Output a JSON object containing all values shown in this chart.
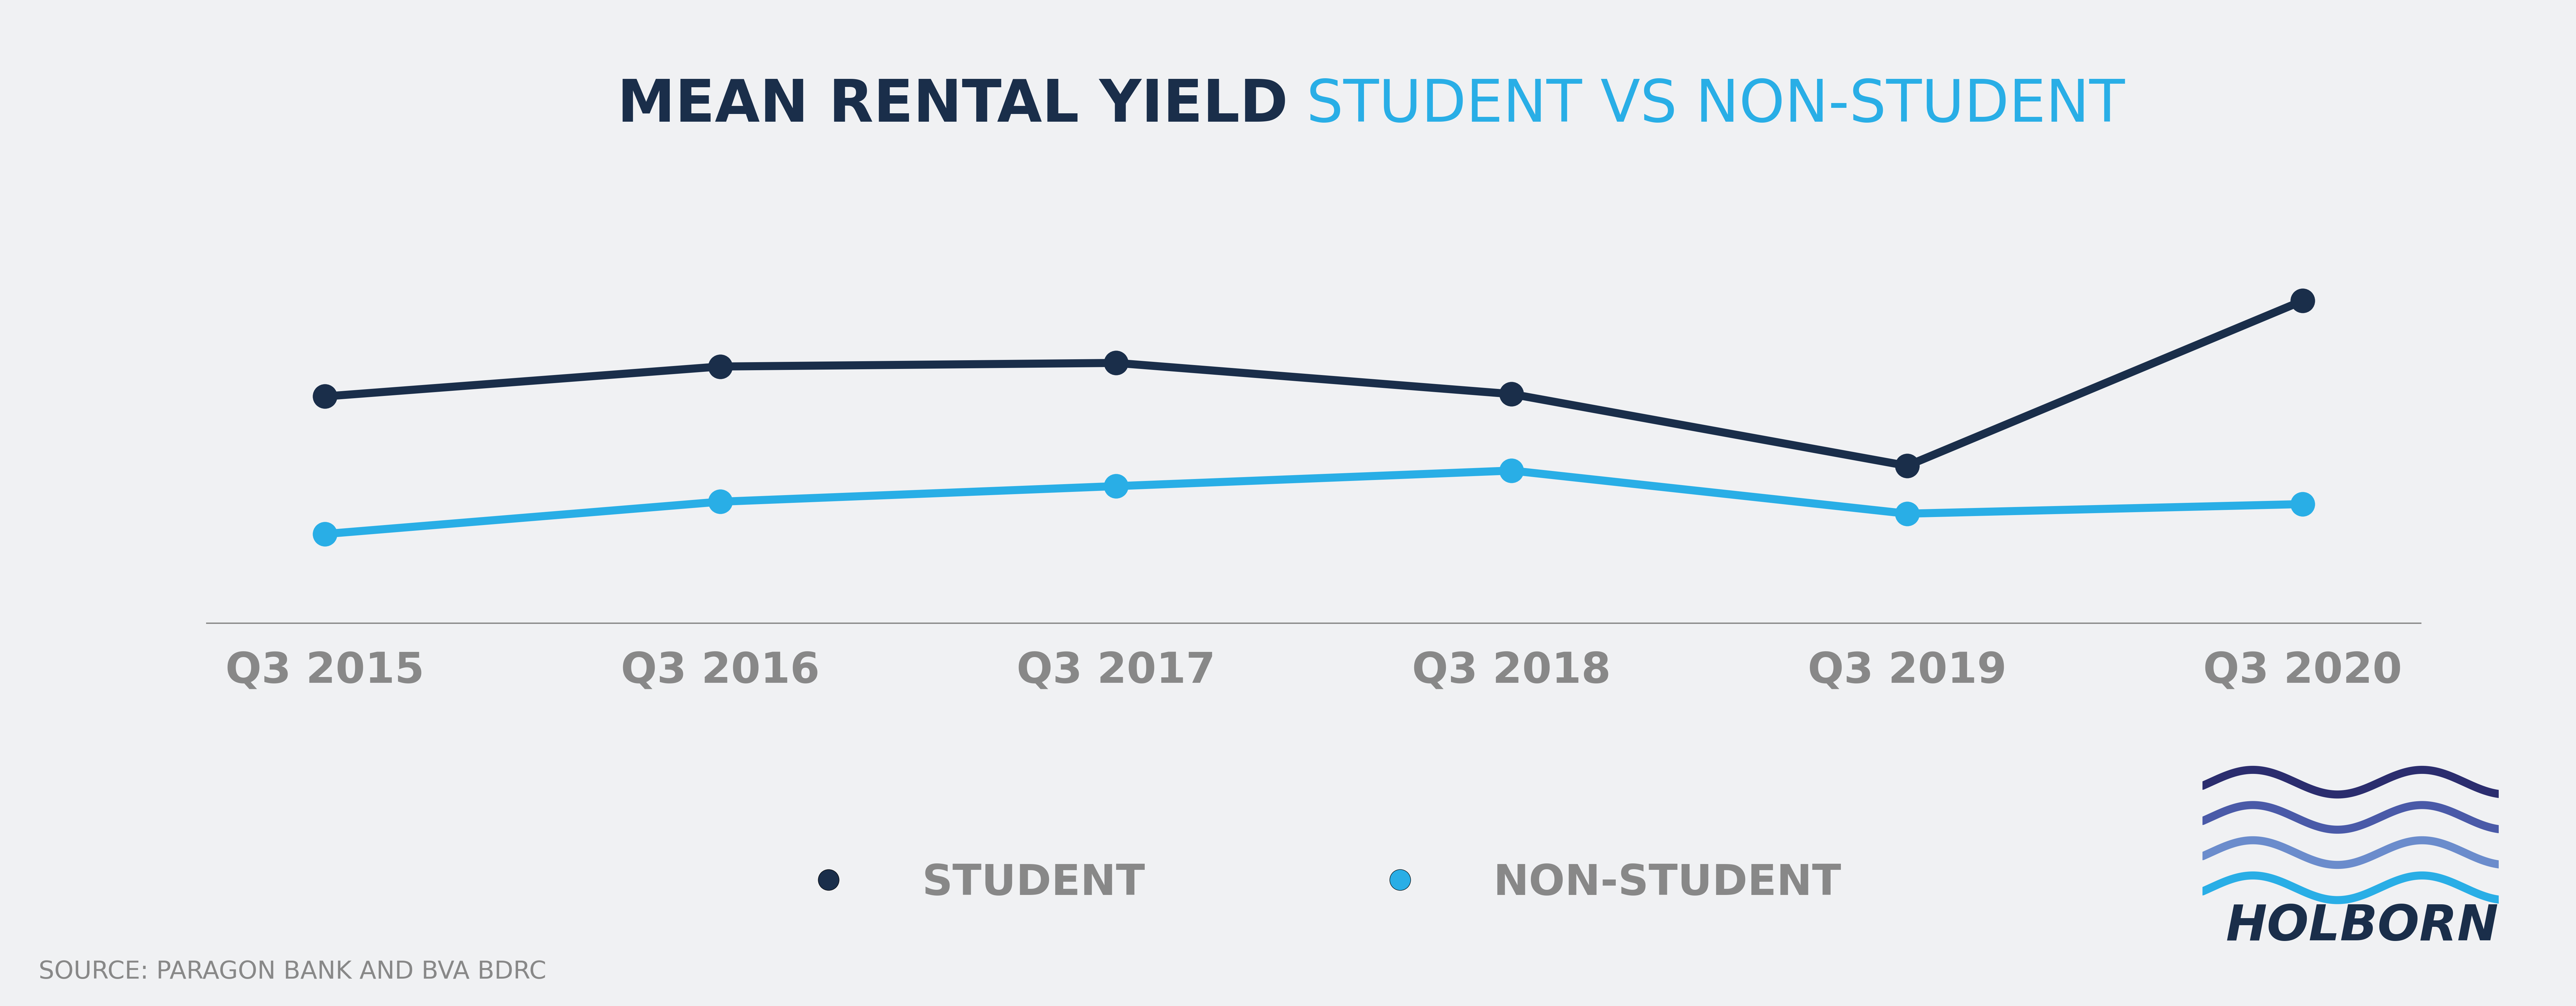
{
  "title_bold": "MEAN RENTAL YIELD",
  "title_light": " STUDENT VS NON-STUDENT",
  "categories": [
    "Q3 2015",
    "Q3 2016",
    "Q3 2017",
    "Q3 2018",
    "Q3 2019",
    "Q3 2020"
  ],
  "student_values": [
    5.4,
    5.65,
    5.68,
    5.42,
    4.82,
    6.2
  ],
  "non_student_values": [
    4.25,
    4.52,
    4.65,
    4.78,
    4.42,
    4.5
  ],
  "student_color": "#1a2e4a",
  "non_student_color": "#29aee6",
  "background_color": "#f0f1f3",
  "axis_line_color": "#888888",
  "title_bold_color": "#1a2e4a",
  "title_light_color": "#29aee6",
  "xlabel_color": "#888888",
  "source_text": "SOURCE: PARAGON BANK AND BVA BDRC",
  "legend_student": "STUDENT",
  "legend_non_student": "NON-STUDENT",
  "ylim_min": 3.5,
  "ylim_max": 7.2,
  "line_width": 18,
  "marker_size": 55,
  "title_bold_fontsize": 130,
  "title_light_fontsize": 130,
  "tick_fontsize": 95,
  "legend_fontsize": 95,
  "source_fontsize": 55,
  "holborn_fontsize": 110,
  "wave_colors": [
    "#2b2d6e",
    "#4a5aa8",
    "#6b8ccc",
    "#29aee6"
  ],
  "wave_linewidth": 18
}
